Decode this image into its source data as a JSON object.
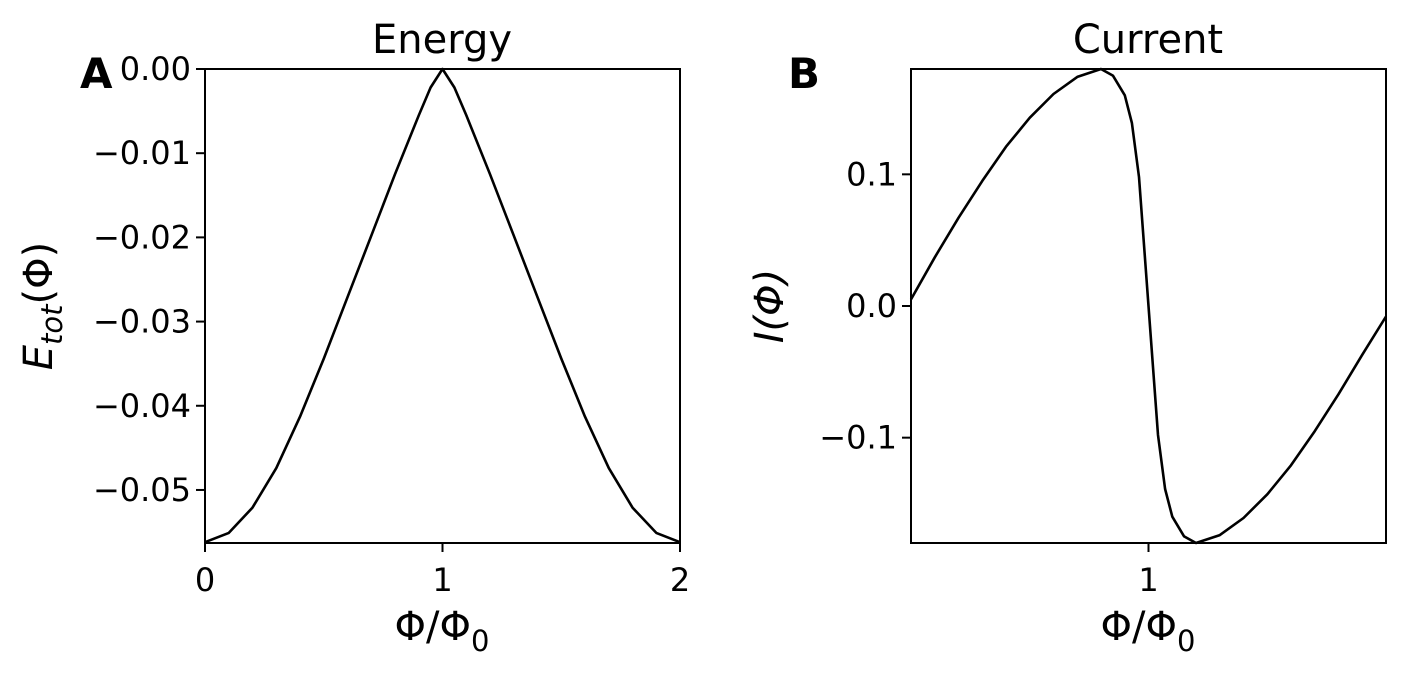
{
  "chart_data": [
    {
      "type": "line",
      "panel_letter": "A",
      "title": "Energy",
      "xlabel": "Φ/Φ",
      "xlabel_sub": "0",
      "ylabel": "E",
      "ylabel_sub": "tot",
      "ylabel_suffix": "(Φ)",
      "xlim": [
        0,
        2
      ],
      "ylim": [
        -0.0563,
        0.0
      ],
      "xticks": [
        0,
        1,
        2
      ],
      "xtick_labels": [
        "0",
        "1",
        "2"
      ],
      "yticks": [
        0.0,
        -0.01,
        -0.02,
        -0.03,
        -0.04,
        -0.05
      ],
      "ytick_labels": [
        "0.00",
        "−0.01",
        "−0.02",
        "−0.03",
        "−0.04",
        "−0.05"
      ],
      "grid": false,
      "series": [
        {
          "color": "#000000",
          "x": [
            0.0,
            0.1,
            0.2,
            0.3,
            0.4,
            0.5,
            0.6,
            0.7,
            0.8,
            0.9,
            0.95,
            1.0,
            1.05,
            1.1,
            1.2,
            1.3,
            1.4,
            1.5,
            1.6,
            1.7,
            1.8,
            1.9,
            2.0
          ],
          "y": [
            -0.0562,
            -0.0551,
            -0.0521,
            -0.0474,
            -0.0413,
            -0.0344,
            -0.0271,
            -0.0198,
            -0.0125,
            -0.0055,
            -0.0022,
            0.0,
            -0.0022,
            -0.0055,
            -0.0125,
            -0.0198,
            -0.0271,
            -0.0344,
            -0.0413,
            -0.0474,
            -0.0521,
            -0.0551,
            -0.0562
          ]
        }
      ]
    },
    {
      "type": "line",
      "panel_letter": "B",
      "title": "Current",
      "xlabel": "Φ/Φ",
      "xlabel_sub": "0",
      "ylabel": "I(Φ)",
      "xlim": [
        0.0,
        2.0
      ],
      "ylim": [
        -0.18,
        0.18
      ],
      "xticks": [
        1.0
      ],
      "xtick_labels": [
        "1"
      ],
      "yticks": [
        0.1,
        0.0,
        -0.1
      ],
      "ytick_labels": [
        "0.1",
        "0.0",
        "−0.1"
      ],
      "grid": false,
      "series": [
        {
          "color": "#000000",
          "x": [
            0.0,
            0.1,
            0.2,
            0.3,
            0.4,
            0.5,
            0.6,
            0.7,
            0.8,
            0.85,
            0.9,
            0.93,
            0.96,
            1.0,
            1.04,
            1.07,
            1.1,
            1.15,
            1.2,
            1.3,
            1.4,
            1.5,
            1.6,
            1.7,
            1.8,
            1.9,
            2.0
          ],
          "y": [
            0.005,
            0.037,
            0.067,
            0.095,
            0.121,
            0.143,
            0.161,
            0.174,
            0.18,
            0.175,
            0.16,
            0.139,
            0.098,
            0.0,
            -0.098,
            -0.139,
            -0.16,
            -0.175,
            -0.18,
            -0.174,
            -0.161,
            -0.143,
            -0.121,
            -0.095,
            -0.067,
            -0.037,
            -0.008
          ]
        }
      ]
    }
  ]
}
